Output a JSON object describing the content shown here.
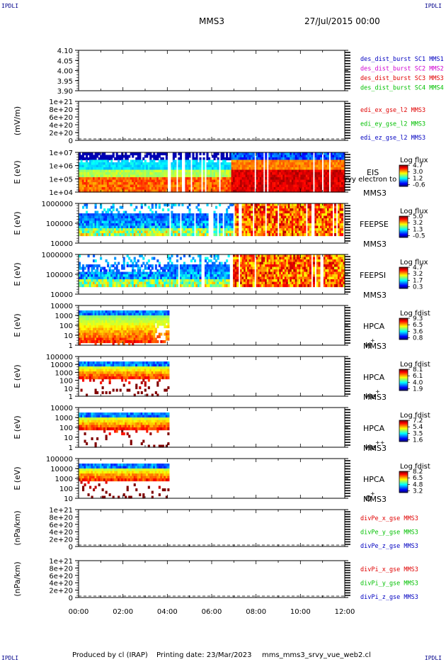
{
  "header": {
    "corner_tag": "IPDLI",
    "spacecraft": "MMS3",
    "datetime": "27/Jul/2015 00:00"
  },
  "footer": {
    "producer": "Produced by cl (IRAP)",
    "printing_date": "Printing date: 23/Mar/2023",
    "script_name": "mms_mms3_srvy_vue_web2.cl"
  },
  "time_axis": {
    "start_hour": 0,
    "end_hour": 12,
    "tick_labels": [
      "00:00",
      "02:00",
      "04:00",
      "06:00",
      "08:00",
      "10:00",
      "12:00"
    ]
  },
  "colors": {
    "sc1": "#0000c0",
    "sc2": "#d000d0",
    "sc3": "#e00000",
    "sc4": "#00c000",
    "x_comp": "#e00000",
    "y_comp": "#00c000",
    "z_comp": "#0000c0"
  },
  "chart_data": [
    {
      "id": "p1",
      "type": "line",
      "ylabel": "",
      "yticks": [
        "4.10",
        "4.05",
        "4.00",
        "3.95",
        "3.90"
      ],
      "ylim": [
        3.9,
        4.1
      ],
      "series": [
        {
          "name": "des_dist_burst SC1 MMS1",
          "color": "sc1",
          "values": []
        },
        {
          "name": "des_dist_burst SC2 MMS2",
          "color": "sc2",
          "values": []
        },
        {
          "name": "des_dist_burst SC3 MMS3",
          "color": "sc3",
          "values": []
        },
        {
          "name": "des_dist_burst SC4 MMS4",
          "color": "sc4",
          "values": []
        }
      ]
    },
    {
      "id": "p2",
      "type": "line",
      "ylabel": "(mV/m)",
      "yticks": [
        "1e+21",
        "8e+20",
        "6e+20",
        "4e+20",
        "2e+20",
        "0"
      ],
      "ylim": [
        0,
        1e+21
      ],
      "series": [
        {
          "name": "edi_ex_gse_l2 MMS3",
          "color": "x_comp",
          "values": []
        },
        {
          "name": "edi_ey_gse_l2 MMS3",
          "color": "y_comp",
          "values": []
        },
        {
          "name": "edi_ez_gse_l2 MMS3",
          "color": "z_comp",
          "values": []
        }
      ]
    },
    {
      "id": "p3",
      "type": "heatmap",
      "ylabel": "E (eV)",
      "yticks": [
        "1e+07",
        "1e+06",
        "1e+05",
        "1e+04"
      ],
      "ylim": [
        10000.0,
        10000000.0
      ],
      "instrument": [
        "EIS",
        "MMS3"
      ],
      "overlay_text": "rvy electron to",
      "colorbar": {
        "title": "Log flux",
        "ticks": [
          "4.7",
          "3.0",
          "1.2",
          "-0.6"
        ],
        "range": [
          -0.6,
          4.7
        ]
      }
    },
    {
      "id": "p4",
      "type": "heatmap",
      "ylabel": "E (eV)",
      "yticks": [
        "1000000",
        "100000",
        "10000"
      ],
      "ylim": [
        10000.0,
        1000000.0
      ],
      "instrument": [
        "FEEPSE",
        "MMS3"
      ],
      "colorbar": {
        "title": "Log flux",
        "ticks": [
          "5.0",
          "3.2",
          "1.3",
          "-0.5"
        ],
        "range": [
          -0.5,
          5.0
        ]
      }
    },
    {
      "id": "p5",
      "type": "heatmap",
      "ylabel": "E (eV)",
      "yticks": [
        "1000000",
        "100000",
        "10000"
      ],
      "ylim": [
        10000.0,
        1000000.0
      ],
      "instrument": [
        "FEEPSI",
        "MMS3"
      ],
      "colorbar": {
        "title": "Log flux",
        "ticks": [
          "4.7",
          "3.2",
          "1.7",
          "0.3"
        ],
        "range": [
          0.3,
          4.7
        ]
      }
    },
    {
      "id": "p6",
      "type": "heatmap",
      "ylabel": "E (eV)",
      "yticks": [
        "10000",
        "1000",
        "100",
        "10",
        "1"
      ],
      "ylim": [
        1,
        10000
      ],
      "instrument": [
        "HPCA",
        "MMS3"
      ],
      "species": "H",
      "species_charge": "+",
      "colorbar": {
        "title": "Log fdist",
        "ticks": [
          "9.3",
          "6.5",
          "3.6",
          "0.8"
        ],
        "range": [
          0.8,
          9.3
        ]
      }
    },
    {
      "id": "p7",
      "type": "heatmap",
      "ylabel": "E (eV)",
      "yticks": [
        "100000",
        "10000",
        "1000",
        "100",
        "10",
        "1"
      ],
      "ylim": [
        1,
        100000
      ],
      "instrument": [
        "HPCA",
        "MMS3"
      ],
      "species": "He",
      "species_charge": "+",
      "colorbar": {
        "title": "Log fdist",
        "ticks": [
          "8.1",
          "6.1",
          "4.0",
          "1.9"
        ],
        "range": [
          1.9,
          8.1
        ]
      }
    },
    {
      "id": "p8",
      "type": "heatmap",
      "ylabel": "E (eV)",
      "yticks": [
        "10000",
        "1000",
        "100",
        "10",
        "1"
      ],
      "ylim": [
        1,
        10000
      ],
      "instrument": [
        "HPCA",
        "MMS3"
      ],
      "species": "He",
      "species_charge": "++",
      "colorbar": {
        "title": "Log fdist",
        "ticks": [
          "7.2",
          "5.4",
          "3.5",
          "1.6"
        ],
        "range": [
          1.6,
          7.2
        ]
      }
    },
    {
      "id": "p9",
      "type": "heatmap",
      "ylabel": "E (eV)",
      "yticks": [
        "100000",
        "10000",
        "1000",
        "100",
        "10"
      ],
      "ylim": [
        10,
        100000
      ],
      "instrument": [
        "HPCA",
        "MMS3"
      ],
      "species": "O",
      "species_charge": "+",
      "colorbar": {
        "title": "Log fdist",
        "ticks": [
          "8.2",
          "6.5",
          "4.8",
          "3.2"
        ],
        "range": [
          3.2,
          8.2
        ]
      }
    },
    {
      "id": "p10",
      "type": "line",
      "ylabel": "(nPa/km)",
      "yticks": [
        "1e+21",
        "8e+20",
        "6e+20",
        "4e+20",
        "2e+20",
        "0"
      ],
      "ylim": [
        0,
        1e+21
      ],
      "series": [
        {
          "name": "divPe_x_gse MMS3",
          "color": "x_comp",
          "values": []
        },
        {
          "name": "divPe_y_gse MMS3",
          "color": "y_comp",
          "values": []
        },
        {
          "name": "divPe_z_gse MMS3",
          "color": "z_comp",
          "values": []
        }
      ]
    },
    {
      "id": "p11",
      "type": "line",
      "ylabel": "(nPa/km)",
      "yticks": [
        "1e+21",
        "8e+20",
        "6e+20",
        "4e+20",
        "2e+20",
        "0"
      ],
      "ylim": [
        0,
        1e+21
      ],
      "series": [
        {
          "name": "divPi_x_gse MMS3",
          "color": "x_comp",
          "values": []
        },
        {
          "name": "divPi_y_gse MMS3",
          "color": "y_comp",
          "values": []
        },
        {
          "name": "divPi_z_gse MMS3",
          "color": "z_comp",
          "values": []
        }
      ]
    }
  ]
}
